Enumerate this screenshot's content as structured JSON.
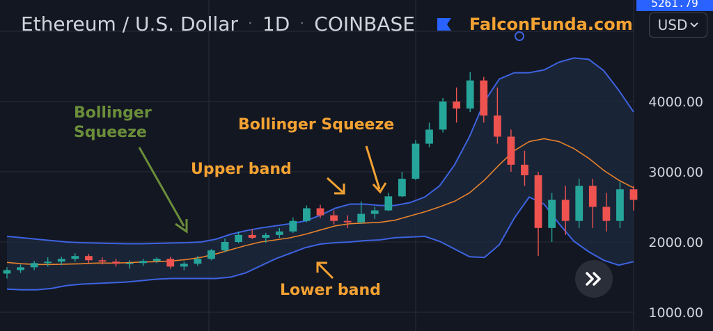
{
  "header": {
    "symbol": "Ethereum / U.S. Dollar",
    "interval": "1D",
    "exchange": "COINBASE",
    "separator": "·",
    "brand": "FalconFunda.com"
  },
  "currency_button": {
    "label": "USD",
    "chevron": "chevron-down-icon"
  },
  "price_tag": "5261.79",
  "scroll_button_icon": "double-chevron-right-icon",
  "colors": {
    "background": "#131722",
    "grid": "#2a2e39",
    "up_candle": "#26a69a",
    "down_candle": "#ef5350",
    "bands": "#3d63e0",
    "middle_band": "#e8822c",
    "annotation_orange": "#f4a232",
    "annotation_green": "#6b8e3a",
    "band_fill": "#1e2a3f"
  },
  "annotations": {
    "squeeze_green": [
      "Bollinger",
      "Squeeze"
    ],
    "squeeze_orange": "Bollinger Squeeze",
    "upper_band": "Upper band",
    "lower_band": "Lower band"
  },
  "chart_data": {
    "type": "candlestick",
    "title": "",
    "xlabel": "",
    "ylabel": "",
    "y_ticks": [
      "1000.00",
      "2000.00",
      "3000.00",
      "4000.00"
    ],
    "y_tick_values": [
      1000,
      2000,
      3000,
      4000
    ],
    "ylim": [
      700,
      5000
    ],
    "grid": true,
    "indicators": [
      "Bollinger Bands"
    ],
    "series": [
      {
        "name": "Upper band",
        "values": [
          2080,
          2060,
          2040,
          2020,
          2000,
          1990,
          1985,
          1980,
          1975,
          1975,
          1980,
          1985,
          1990,
          2000,
          2040,
          2110,
          2160,
          2200,
          2230,
          2260,
          2300,
          2380,
          2480,
          2540,
          2540,
          2520,
          2520,
          2560,
          2640,
          2800,
          3100,
          3500,
          4000,
          4320,
          4410,
          4410,
          4450,
          4560,
          4620,
          4600,
          4440,
          4160,
          3850
        ]
      },
      {
        "name": "Middle band",
        "values": [
          1710,
          1690,
          1680,
          1680,
          1685,
          1690,
          1700,
          1700,
          1705,
          1715,
          1720,
          1730,
          1750,
          1780,
          1830,
          1890,
          1950,
          2000,
          2030,
          2060,
          2110,
          2170,
          2230,
          2260,
          2270,
          2280,
          2310,
          2370,
          2430,
          2500,
          2580,
          2700,
          2880,
          3100,
          3300,
          3430,
          3470,
          3430,
          3330,
          3190,
          3020,
          2880,
          2770
        ]
      },
      {
        "name": "Lower band",
        "values": [
          1330,
          1320,
          1320,
          1340,
          1380,
          1400,
          1410,
          1420,
          1430,
          1450,
          1470,
          1480,
          1480,
          1480,
          1480,
          1500,
          1560,
          1660,
          1760,
          1840,
          1920,
          1970,
          1990,
          2000,
          2020,
          2030,
          2060,
          2070,
          2080,
          2010,
          1900,
          1790,
          1780,
          1960,
          2340,
          2640,
          2540,
          2260,
          2010,
          1860,
          1740,
          1670,
          1720
        ]
      },
      {
        "name": "Price",
        "ohlc": [
          [
            1550,
            1640,
            1480,
            1600
          ],
          [
            1600,
            1680,
            1560,
            1640
          ],
          [
            1640,
            1730,
            1600,
            1700
          ],
          [
            1700,
            1780,
            1650,
            1720
          ],
          [
            1720,
            1790,
            1670,
            1760
          ],
          [
            1760,
            1840,
            1720,
            1800
          ],
          [
            1800,
            1830,
            1700,
            1740
          ],
          [
            1740,
            1780,
            1680,
            1720
          ],
          [
            1720,
            1760,
            1650,
            1690
          ],
          [
            1690,
            1740,
            1620,
            1700
          ],
          [
            1700,
            1760,
            1660,
            1730
          ],
          [
            1730,
            1780,
            1700,
            1760
          ],
          [
            1760,
            1790,
            1620,
            1650
          ],
          [
            1650,
            1720,
            1600,
            1690
          ],
          [
            1690,
            1800,
            1660,
            1760
          ],
          [
            1760,
            1900,
            1740,
            1880
          ],
          [
            1880,
            2050,
            1860,
            2000
          ],
          [
            2000,
            2150,
            1980,
            2100
          ],
          [
            2100,
            2180,
            2040,
            2060
          ],
          [
            2060,
            2130,
            1990,
            2100
          ],
          [
            2100,
            2200,
            2060,
            2150
          ],
          [
            2150,
            2350,
            2130,
            2300
          ],
          [
            2300,
            2520,
            2280,
            2480
          ],
          [
            2480,
            2530,
            2340,
            2380
          ],
          [
            2380,
            2450,
            2250,
            2300
          ],
          [
            2300,
            2380,
            2200,
            2280
          ],
          [
            2280,
            2580,
            2260,
            2400
          ],
          [
            2400,
            2500,
            2330,
            2450
          ],
          [
            2450,
            2700,
            2440,
            2650
          ],
          [
            2650,
            3000,
            2640,
            2900
          ],
          [
            2900,
            3450,
            2880,
            3400
          ],
          [
            3400,
            3700,
            3350,
            3600
          ],
          [
            3600,
            4050,
            3560,
            4000
          ],
          [
            4000,
            4200,
            3700,
            3900
          ],
          [
            3900,
            4420,
            3850,
            4300
          ],
          [
            4300,
            4350,
            3700,
            3800
          ],
          [
            3800,
            4200,
            3400,
            3500
          ],
          [
            3500,
            3600,
            3000,
            3100
          ],
          [
            3100,
            3300,
            2800,
            2950
          ],
          [
            2950,
            3000,
            1800,
            2200
          ],
          [
            2200,
            2700,
            2000,
            2600
          ],
          [
            2600,
            2800,
            2100,
            2300
          ],
          [
            2300,
            2900,
            2200,
            2800
          ],
          [
            2800,
            2900,
            2200,
            2500
          ],
          [
            2500,
            2700,
            2150,
            2300
          ],
          [
            2300,
            2850,
            2200,
            2750
          ],
          [
            2750,
            2800,
            2450,
            2600
          ]
        ]
      }
    ]
  }
}
